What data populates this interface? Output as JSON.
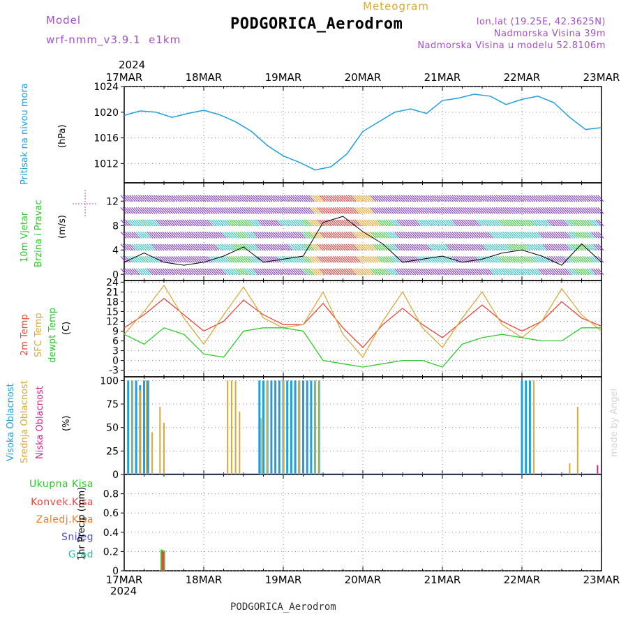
{
  "header": {
    "model_label": "Model",
    "model_name": "wrf-nmm_v3.9.1  e1km",
    "title": "PODGORICA_Aerodrom",
    "meteogram_label": "Meteogram",
    "lonlat": "lon,lat (19.25E, 42.3625N)",
    "altitude": "Nadmorska Visina 39m",
    "altitude_model": "Nadmorska Visina u modelu 52.8106m",
    "footer": "PODGORICA_Aerodrom",
    "watermark": "made by Angel",
    "year": "2024"
  },
  "colors": {
    "pressure": "#1f9fe0",
    "temp2m": "#e8463c",
    "sfc": "#d8aa3c",
    "dew": "#2ec82e",
    "cloud_high": "#1f9fe0",
    "cloud_mid": "#d8aa3c",
    "cloud_low": "#cc2a8a",
    "rain_total": "#2ec82e",
    "rain_conv": "#e8463c",
    "rain_frz": "#f08030",
    "snow": "#5050d0",
    "hail": "#2ebfaa",
    "label_purple": "#a050c8"
  },
  "chart_data": [
    {
      "type": "line",
      "panel": "pressure",
      "ylabel_1": "Pritisak na nivou mora",
      "ylabel_2": "(hPa)",
      "ylim": [
        1009,
        1024
      ],
      "yticks": [
        "1012",
        "1016",
        "1020",
        "1024"
      ],
      "x_days": [
        "17MAR",
        "18MAR",
        "19MAR",
        "20MAR",
        "21MAR",
        "22MAR",
        "23MAR"
      ],
      "x": [
        0,
        0.2,
        0.4,
        0.6,
        0.8,
        1.0,
        1.2,
        1.4,
        1.6,
        1.8,
        2.0,
        2.2,
        2.4,
        2.6,
        2.8,
        3.0,
        3.2,
        3.4,
        3.6,
        3.8,
        4.0,
        4.2,
        4.4,
        4.6,
        4.8,
        5.0,
        5.2,
        5.4,
        5.6,
        5.8,
        6.0
      ],
      "series": [
        {
          "values": [
            1019.5,
            1020.2,
            1020.0,
            1019.2,
            1019.8,
            1020.3,
            1019.6,
            1018.5,
            1017.0,
            1014.8,
            1013.2,
            1012.2,
            1011.0,
            1011.5,
            1013.5,
            1017.0,
            1018.5,
            1020.0,
            1020.5,
            1019.8,
            1021.8,
            1022.2,
            1022.8,
            1022.5,
            1021.2,
            1022.0,
            1022.5,
            1021.5,
            1019.2,
            1017.3,
            1017.6
          ]
        }
      ]
    },
    {
      "type": "line",
      "panel": "wind",
      "ylabel_1": "10m Vjetar",
      "ylabel_2": "Brzina i Pravac",
      "ylabel_3": "(m/s)",
      "ylim": [
        -1,
        15
      ],
      "yticks": [
        "0",
        "4",
        "8",
        "12"
      ],
      "x": [
        0,
        0.25,
        0.5,
        0.75,
        1.0,
        1.25,
        1.5,
        1.75,
        2.0,
        2.25,
        2.5,
        2.75,
        3.0,
        3.25,
        3.5,
        3.75,
        4.0,
        4.25,
        4.5,
        4.75,
        5.0,
        5.25,
        5.5,
        5.75,
        6.0
      ],
      "series": [
        {
          "values": [
            2.0,
            3.5,
            2.0,
            1.5,
            2.0,
            3.0,
            4.5,
            2.0,
            2.5,
            3.0,
            8.5,
            9.5,
            7.0,
            5.0,
            2.0,
            2.5,
            3.0,
            2.0,
            2.5,
            3.5,
            4.0,
            3.0,
            1.5,
            5.0,
            2.0
          ]
        }
      ]
    },
    {
      "type": "line",
      "panel": "temperature",
      "ylabel_1": "2m Temp",
      "ylabel_2": "SFC Temp",
      "ylabel_3": "dewpt Temp",
      "ylabel_4": "(C)",
      "ylim": [
        -5,
        24.5
      ],
      "yticks": [
        "-3",
        "0",
        "3",
        "6",
        "9",
        "12",
        "15",
        "18",
        "21",
        "24"
      ],
      "x": [
        0,
        0.25,
        0.5,
        0.75,
        1.0,
        1.25,
        1.5,
        1.75,
        2.0,
        2.25,
        2.5,
        2.75,
        3.0,
        3.25,
        3.5,
        3.75,
        4.0,
        4.25,
        4.5,
        4.75,
        5.0,
        5.25,
        5.5,
        5.75,
        6.0
      ],
      "series": [
        {
          "name": "2m Temp",
          "values": [
            10,
            14,
            19,
            14,
            9,
            12,
            18.5,
            14,
            11,
            11,
            17.5,
            10,
            4,
            11,
            16,
            11,
            7,
            12,
            17,
            12,
            9,
            12,
            18,
            13,
            10.5
          ]
        },
        {
          "name": "SFC Temp",
          "values": [
            8,
            15,
            23,
            13,
            5,
            14,
            22.5,
            13,
            10,
            11,
            21,
            8,
            1,
            12,
            21,
            10,
            4,
            13,
            21,
            11,
            7,
            12,
            22,
            14,
            9
          ]
        },
        {
          "name": "dewpt Temp",
          "values": [
            8,
            5,
            10,
            8,
            2,
            1,
            9,
            10,
            10,
            9,
            0,
            -1,
            -2,
            -1,
            0,
            0,
            -2,
            5,
            7,
            8,
            7,
            6,
            6,
            10,
            10
          ]
        }
      ]
    },
    {
      "type": "bar",
      "panel": "cloud",
      "ylabel_1": "Visoka Oblacnost",
      "ylabel_2": "Srednja Oblacnost",
      "ylabel_3": "Niska Oblacnost",
      "ylabel_4": "(%)",
      "ylim": [
        0,
        104
      ],
      "yticks": [
        "0",
        "25",
        "50",
        "75",
        "100"
      ],
      "series": [
        {
          "name": "Visoka Oblacnost",
          "x": [
            0.05,
            0.1,
            0.15,
            0.2,
            0.25,
            0.3,
            1.7,
            1.75,
            1.8,
            1.85,
            1.9,
            1.95,
            2.0,
            2.05,
            2.1,
            2.15,
            2.2,
            2.25,
            2.3,
            2.35,
            2.4,
            2.45,
            5.0,
            5.05,
            5.1
          ],
          "values": [
            100,
            100,
            100,
            95,
            100,
            100,
            100,
            100,
            100,
            100,
            100,
            100,
            100,
            100,
            100,
            100,
            100,
            100,
            100,
            100,
            100,
            100,
            100,
            100,
            100
          ]
        },
        {
          "name": "Srednja Oblacnost",
          "x": [
            0.1,
            0.2,
            0.28,
            0.35,
            0.45,
            0.5,
            1.3,
            1.35,
            1.4,
            1.45,
            1.72,
            1.8,
            2.0,
            2.2,
            2.4,
            2.45,
            5.15,
            5.6,
            5.7
          ],
          "values": [
            100,
            90,
            100,
            45,
            72,
            55,
            100,
            100,
            100,
            67,
            60,
            100,
            100,
            100,
            100,
            100,
            100,
            12,
            72
          ]
        },
        {
          "name": "Niska Oblacnost",
          "x": [
            5.95
          ],
          "values": [
            10
          ]
        }
      ]
    },
    {
      "type": "bar",
      "panel": "precipitation",
      "ylabel_1": "1hr Precip (mm)",
      "ylim": [
        0,
        1.0
      ],
      "yticks": [
        "0",
        "0.2",
        "0.4",
        "0.6",
        "0.8"
      ],
      "legend": [
        "Ukupna Kisa",
        "Konvek.Kisa",
        "Zaledj.Kisa",
        "Snijeg",
        "Grad"
      ],
      "series": [
        {
          "name": "Ukupna Kisa",
          "x": [
            0.47,
            0.5
          ],
          "values": [
            0.22,
            0.21
          ]
        },
        {
          "name": "Konvek.Kisa",
          "x": [
            0.485
          ],
          "values": [
            0.2
          ]
        }
      ]
    }
  ]
}
